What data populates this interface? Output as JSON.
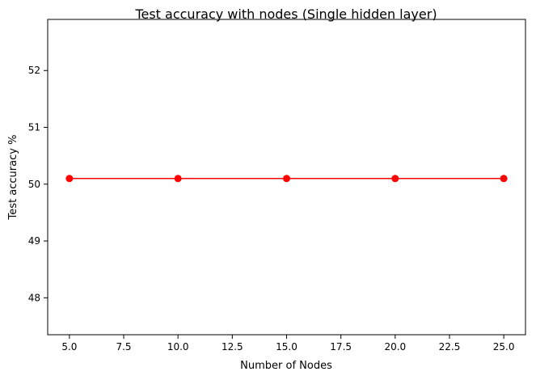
{
  "chart_data": {
    "type": "line",
    "title": "Test accuracy with nodes (Single hidden layer)",
    "xlabel": "Number of Nodes",
    "ylabel": "Test accuracy %",
    "x": [
      5,
      10,
      15,
      20,
      25
    ],
    "series": [
      {
        "values": [
          50.1,
          50.1,
          50.1,
          50.1,
          50.1
        ],
        "color": "#ff0000",
        "marker": "circle"
      }
    ],
    "xlim": [
      4.0,
      26.0
    ],
    "ylim": [
      47.35,
      52.9
    ],
    "xticks": [
      5.0,
      7.5,
      10.0,
      12.5,
      15.0,
      17.5,
      20.0,
      22.5,
      25.0
    ],
    "xtick_labels": [
      "5.0",
      "7.5",
      "10.0",
      "12.5",
      "15.0",
      "17.5",
      "20.0",
      "22.5",
      "25.0"
    ],
    "yticks": [
      48,
      49,
      50,
      51,
      52
    ],
    "ytick_labels": [
      "48",
      "49",
      "50",
      "51",
      "52"
    ],
    "grid": false,
    "legend": "none"
  }
}
